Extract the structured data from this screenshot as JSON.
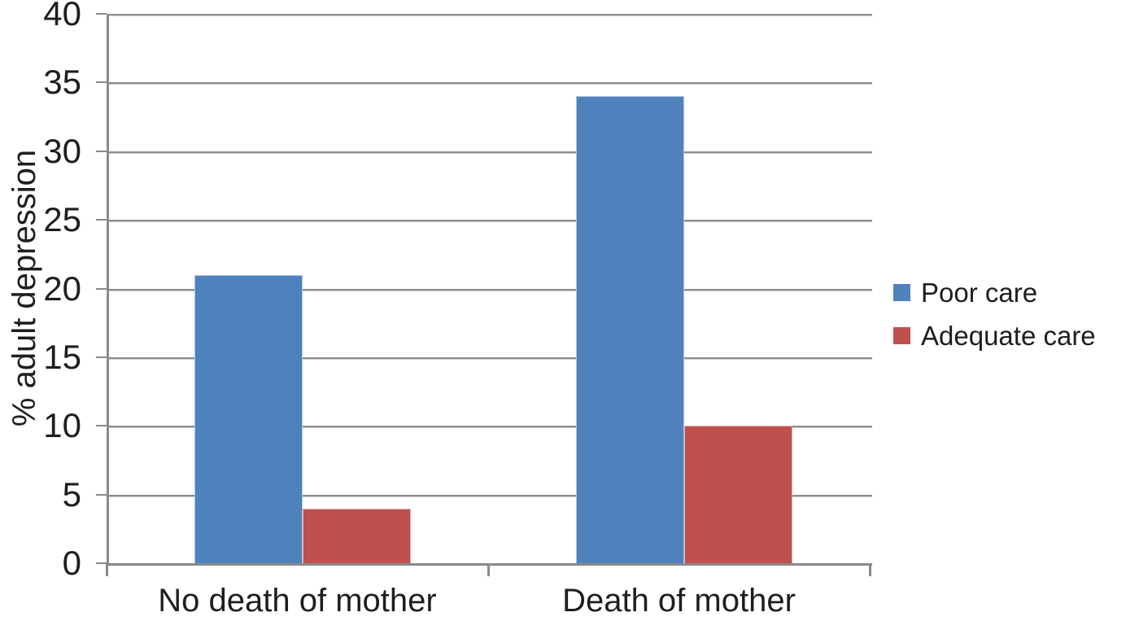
{
  "chart_data": {
    "type": "bar",
    "categories": [
      "No death of mother",
      "Death of mother"
    ],
    "series": [
      {
        "name": "Poor care",
        "color": "#4F81BD",
        "values": [
          21,
          34
        ]
      },
      {
        "name": "Adequate care",
        "color": "#C0504D",
        "values": [
          4,
          10
        ]
      }
    ],
    "title": "",
    "xlabel": "",
    "ylabel": "% adult depression",
    "ylim": [
      0,
      40
    ],
    "yticks": [
      0,
      5,
      10,
      15,
      20,
      25,
      30,
      35,
      40
    ],
    "grid": true,
    "legend_position": "right"
  },
  "colors": {
    "gridline": "#8C8C8C",
    "axis": "#8A8A8A",
    "text": "#1E1E1E",
    "background": "#FFFFFF"
  }
}
